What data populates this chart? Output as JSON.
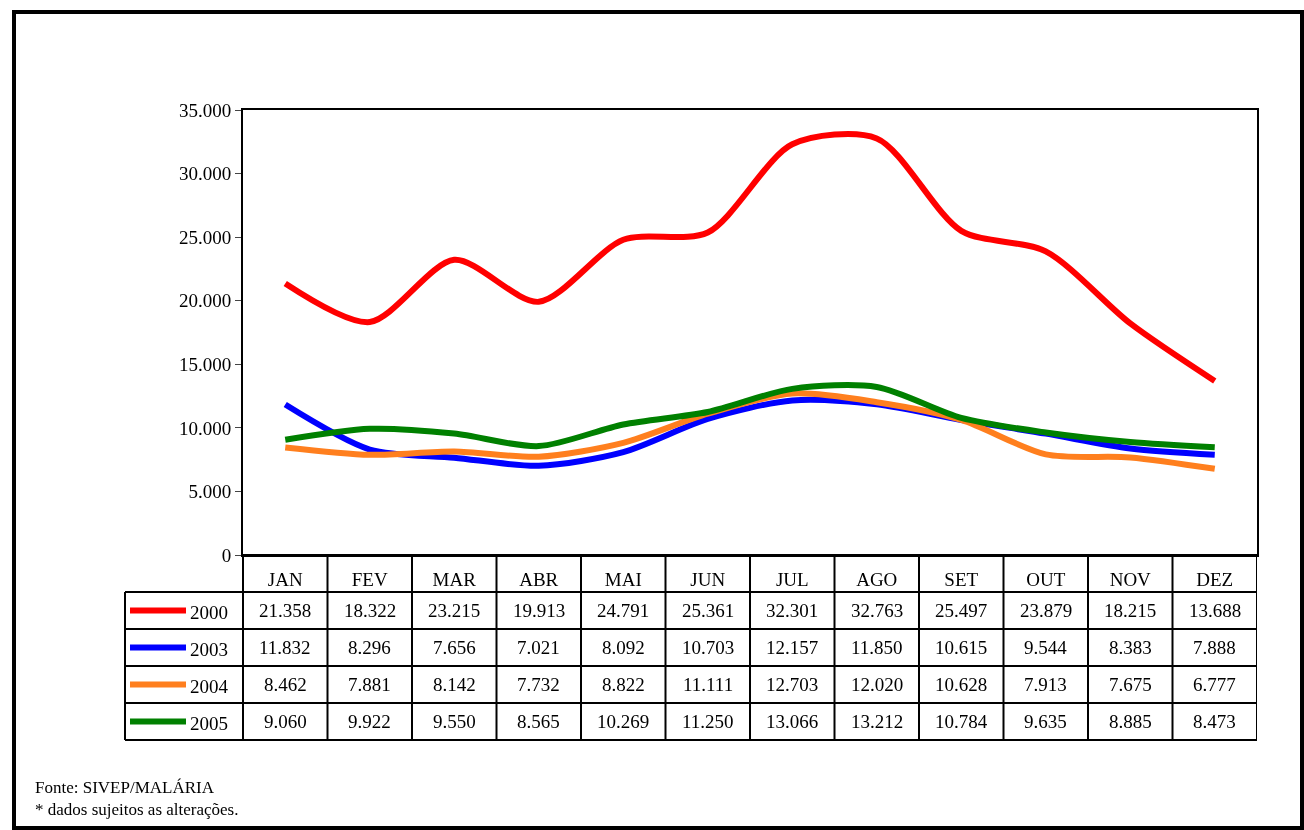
{
  "chart_data": {
    "type": "line",
    "categories": [
      "JAN",
      "FEV",
      "MAR",
      "ABR",
      "MAI",
      "JUN",
      "JUL",
      "AGO",
      "SET",
      "OUT",
      "NOV",
      "DEZ"
    ],
    "series": [
      {
        "name": "2000",
        "color": "#ff0000",
        "values": [
          21358,
          18322,
          23215,
          19913,
          24791,
          25361,
          32301,
          32763,
          25497,
          23879,
          18215,
          13688
        ],
        "value_labels": [
          "21.358",
          "18.322",
          "23.215",
          "19.913",
          "24.791",
          "25.361",
          "32.301",
          "32.763",
          "25.497",
          "23.879",
          "18.215",
          "13.688"
        ]
      },
      {
        "name": "2003",
        "color": "#0000ff",
        "values": [
          11832,
          8296,
          7656,
          7021,
          8092,
          10703,
          12157,
          11850,
          10615,
          9544,
          8383,
          7888
        ],
        "value_labels": [
          "11.832",
          "8.296",
          "7.656",
          "7.021",
          "8.092",
          "10.703",
          "12.157",
          "11.850",
          "10.615",
          "9.544",
          "8.383",
          "7.888"
        ]
      },
      {
        "name": "2004",
        "color": "#ff7f1e",
        "values": [
          8462,
          7881,
          8142,
          7732,
          8822,
          11111,
          12703,
          12020,
          10628,
          7913,
          7675,
          6777
        ],
        "value_labels": [
          "8.462",
          "7.881",
          "8.142",
          "7.732",
          "8.822",
          "11.111",
          "12.703",
          "12.020",
          "10.628",
          "7.913",
          "7.675",
          "6.777"
        ]
      },
      {
        "name": "2005",
        "color": "#008000",
        "values": [
          9060,
          9922,
          9550,
          8565,
          10269,
          11250,
          13066,
          13212,
          10784,
          9635,
          8885,
          8473
        ],
        "value_labels": [
          "9.060",
          "9.922",
          "9.550",
          "8.565",
          "10.269",
          "11.250",
          "13.066",
          "13.212",
          "10.784",
          "9.635",
          "8.885",
          "8.473"
        ]
      }
    ],
    "ylim": [
      0,
      35000
    ],
    "yticks": [
      0,
      {
        "value": 5000,
        "label": "5.000"
      },
      {
        "value": 10000,
        "label": "10.000"
      },
      {
        "value": 15000,
        "label": "15.000"
      },
      {
        "value": 20000,
        "label": "20.000"
      },
      {
        "value": 25000,
        "label": "25.000"
      },
      {
        "value": 30000,
        "label": "30.000"
      },
      {
        "value": 35000,
        "label": "35.000"
      }
    ],
    "legend": "bottom left",
    "marker": "none",
    "line_style": "solid",
    "annotations": [
      "Fonte: SIVEP/MALÁRIA",
      "* dados sujeitos as alterações."
    ]
  }
}
